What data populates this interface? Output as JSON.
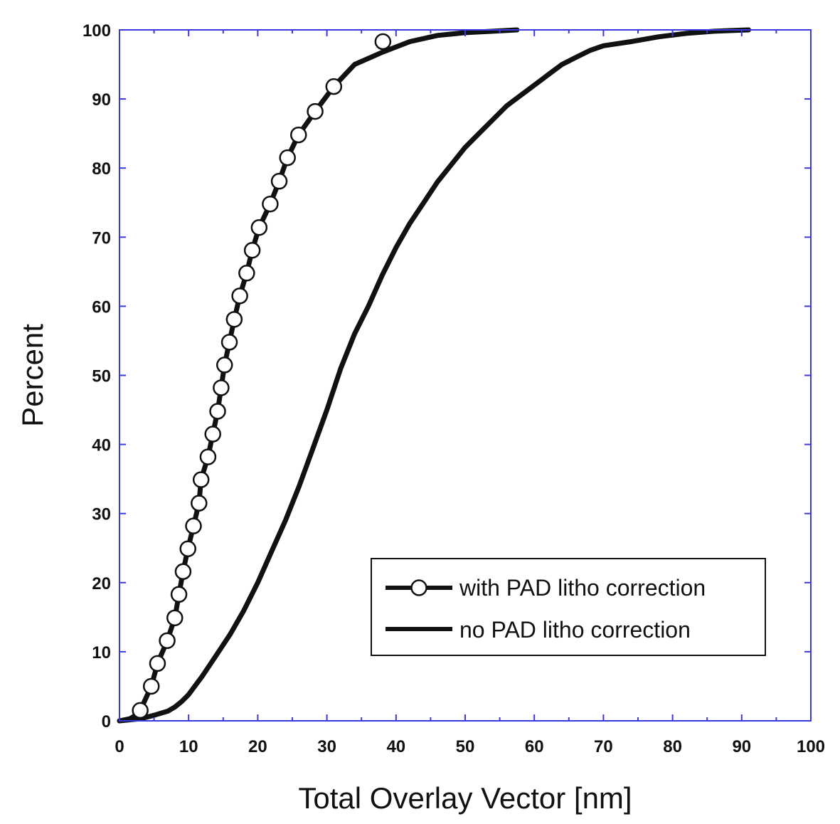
{
  "chart_data": {
    "type": "line",
    "title": "",
    "xlabel": "Total Overlay Vector [nm]",
    "ylabel": "Percent",
    "xlim": [
      0,
      100
    ],
    "ylim": [
      0,
      100
    ],
    "xticks": [
      0,
      10,
      20,
      30,
      40,
      50,
      60,
      70,
      80,
      90,
      100
    ],
    "yticks": [
      0,
      10,
      20,
      30,
      40,
      50,
      60,
      70,
      80,
      90,
      100
    ],
    "xtick_labels": [
      "0",
      "10",
      "20",
      "30",
      "40",
      "50",
      "60",
      "70",
      "80",
      "90",
      "100"
    ],
    "ytick_labels": [
      "0",
      "10",
      "20",
      "30",
      "40",
      "50",
      "60",
      "70",
      "80",
      "90",
      "100"
    ],
    "grid": false,
    "legend_position": "bottom-right",
    "frame_color": "#3a3adc",
    "series": [
      {
        "name": "with PAD litho correction",
        "marker": "open-circle",
        "color": "#111111",
        "x": [
          0,
          1.5,
          2,
          2.5,
          3.0,
          4.6,
          5.5,
          6.9,
          8.0,
          8.6,
          9.2,
          9.9,
          10.7,
          11.5,
          11.8,
          12.8,
          13.5,
          14.2,
          14.7,
          15.2,
          15.9,
          16.6,
          17.4,
          18.4,
          19.2,
          20.2,
          21.8,
          23.1,
          24.3,
          25.9,
          28.3,
          31.0,
          34.0,
          38.1,
          42.0,
          46.0,
          50.0,
          54.0,
          57.5
        ],
        "y": [
          0,
          0.3,
          0.6,
          1.0,
          1.5,
          5.0,
          8.3,
          11.6,
          14.9,
          18.3,
          21.6,
          24.9,
          28.2,
          31.5,
          34.9,
          38.2,
          41.5,
          44.8,
          48.2,
          51.5,
          54.8,
          58.1,
          61.5,
          64.8,
          68.1,
          71.4,
          74.8,
          78.1,
          81.5,
          84.8,
          88.2,
          91.8,
          95.0,
          96.8,
          98.3,
          99.2,
          99.6,
          99.8,
          100
        ],
        "marker_x": [
          3.0,
          4.6,
          5.5,
          6.9,
          8.0,
          8.6,
          9.2,
          9.9,
          10.7,
          11.5,
          11.8,
          12.8,
          13.5,
          14.2,
          14.7,
          15.2,
          15.9,
          16.6,
          17.4,
          18.4,
          19.2,
          20.2,
          21.8,
          23.1,
          24.3,
          25.9,
          28.3,
          31.0,
          38.1
        ],
        "marker_y": [
          1.5,
          5.0,
          8.3,
          11.6,
          14.9,
          18.3,
          21.6,
          24.9,
          28.2,
          31.5,
          34.9,
          38.2,
          41.5,
          44.8,
          48.2,
          51.5,
          54.8,
          58.1,
          61.5,
          64.8,
          68.1,
          71.4,
          74.8,
          78.1,
          81.5,
          84.8,
          88.2,
          91.8,
          98.3
        ]
      },
      {
        "name": "no PAD litho correction",
        "marker": "none",
        "color": "#111111",
        "x": [
          0,
          3,
          5,
          7,
          8,
          9,
          10,
          12,
          14,
          16,
          18,
          20,
          22,
          24,
          26,
          28,
          30,
          32,
          34,
          36,
          38,
          40,
          42,
          44,
          46,
          48,
          50,
          52,
          54,
          56,
          58,
          60,
          62,
          64,
          66,
          68,
          70,
          74,
          78,
          82,
          86,
          91
        ],
        "y": [
          0,
          0.3,
          0.8,
          1.4,
          2.0,
          2.8,
          3.8,
          6.5,
          9.5,
          12.5,
          16.0,
          20.0,
          24.5,
          29.0,
          34.0,
          39.5,
          45.0,
          51.0,
          56.0,
          60.0,
          64.5,
          68.5,
          72.0,
          75.0,
          78.0,
          80.5,
          83.0,
          85.0,
          87.0,
          89.0,
          90.5,
          92.0,
          93.5,
          95.0,
          96.0,
          97.0,
          97.7,
          98.3,
          99.0,
          99.5,
          99.8,
          100
        ]
      }
    ]
  }
}
